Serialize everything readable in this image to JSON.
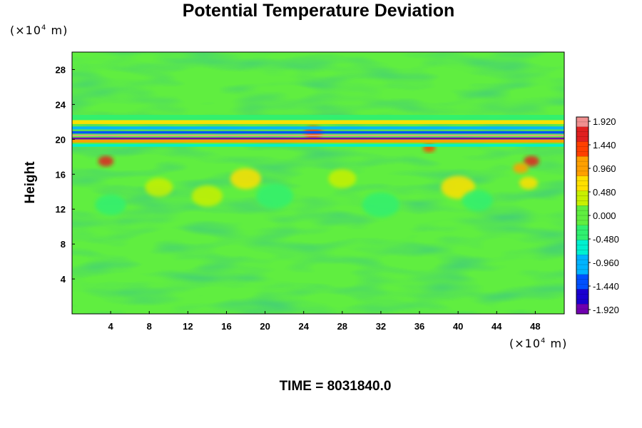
{
  "chart_data": {
    "type": "heatmap",
    "title": "Potential Temperature Deviation",
    "ylabel": "Height",
    "xlabel": "",
    "x_unit": {
      "prefix": "(×10",
      "exp": "4",
      "suffix": " m)"
    },
    "y_unit": {
      "prefix": "(×10",
      "exp": "4",
      "suffix": " m)"
    },
    "xlim": [
      0,
      51
    ],
    "ylim": [
      0,
      30
    ],
    "x_ticks": [
      "4",
      "8",
      "12",
      "16",
      "20",
      "24",
      "28",
      "32",
      "36",
      "40",
      "44",
      "48"
    ],
    "y_ticks": [
      "4",
      "8",
      "12",
      "16",
      "20",
      "24",
      "28"
    ],
    "colorbar": {
      "range": [
        -1.92,
        1.92
      ],
      "tick_labels": [
        "1.920",
        "1.440",
        "0.960",
        "0.480",
        "0.000",
        "-0.480",
        "-0.960",
        "-1.440",
        "-1.920"
      ],
      "colors": [
        "#7000b0",
        "#1a00d0",
        "#0050ff",
        "#00b4ff",
        "#00f0d0",
        "#30f070",
        "#60ee40",
        "#c8f000",
        "#ffe000",
        "#ffa000",
        "#ff4000",
        "#e02020",
        "#f09090"
      ]
    },
    "field": {
      "background_value": 0.05,
      "bands": [
        {
          "y": 20.1,
          "value": -1.9,
          "thickness": 0.22
        },
        {
          "y": 20.45,
          "value": 1.9,
          "thickness": 0.15
        },
        {
          "y": 20.8,
          "value": -1.2,
          "thickness": 0.3
        },
        {
          "y": 21.3,
          "value": -0.9,
          "thickness": 0.35
        },
        {
          "y": 19.8,
          "value": 0.9,
          "thickness": 0.35
        },
        {
          "y": 19.3,
          "value": -0.5,
          "thickness": 0.3
        },
        {
          "y": 22.0,
          "value": 0.5,
          "thickness": 0.5
        },
        {
          "y": 22.5,
          "value": -0.35,
          "thickness": 0.6
        }
      ],
      "features": [
        {
          "x": 3.5,
          "y": 17.5,
          "value": 1.5,
          "r": 0.5
        },
        {
          "x": 47.6,
          "y": 17.5,
          "value": 1.5,
          "r": 0.5
        },
        {
          "x": 46.5,
          "y": 16.7,
          "value": 1.0,
          "r": 0.5
        },
        {
          "x": 47.3,
          "y": 15.0,
          "value": 0.7,
          "r": 0.6
        },
        {
          "x": 18,
          "y": 15.5,
          "value": 0.5,
          "r": 1.0
        },
        {
          "x": 14,
          "y": 13.5,
          "value": 0.4,
          "r": 1.0
        },
        {
          "x": 9,
          "y": 14.5,
          "value": 0.4,
          "r": 0.9
        },
        {
          "x": 40,
          "y": 14.5,
          "value": 0.5,
          "r": 1.1
        },
        {
          "x": 28,
          "y": 15.5,
          "value": 0.35,
          "r": 0.9
        },
        {
          "x": 4,
          "y": 12.5,
          "value": -0.45,
          "r": 1.0
        },
        {
          "x": 21,
          "y": 13.5,
          "value": -0.4,
          "r": 1.2
        },
        {
          "x": 32,
          "y": 12.5,
          "value": -0.35,
          "r": 1.2
        },
        {
          "x": 42,
          "y": 13.0,
          "value": -0.35,
          "r": 1.0
        },
        {
          "x": 37,
          "y": 19.0,
          "value": 1.4,
          "r": 0.4
        },
        {
          "x": 25,
          "y": 20.8,
          "value": 1.2,
          "r": 0.6
        }
      ]
    }
  },
  "footer": {
    "time_label": "TIME = 8031840.0"
  }
}
